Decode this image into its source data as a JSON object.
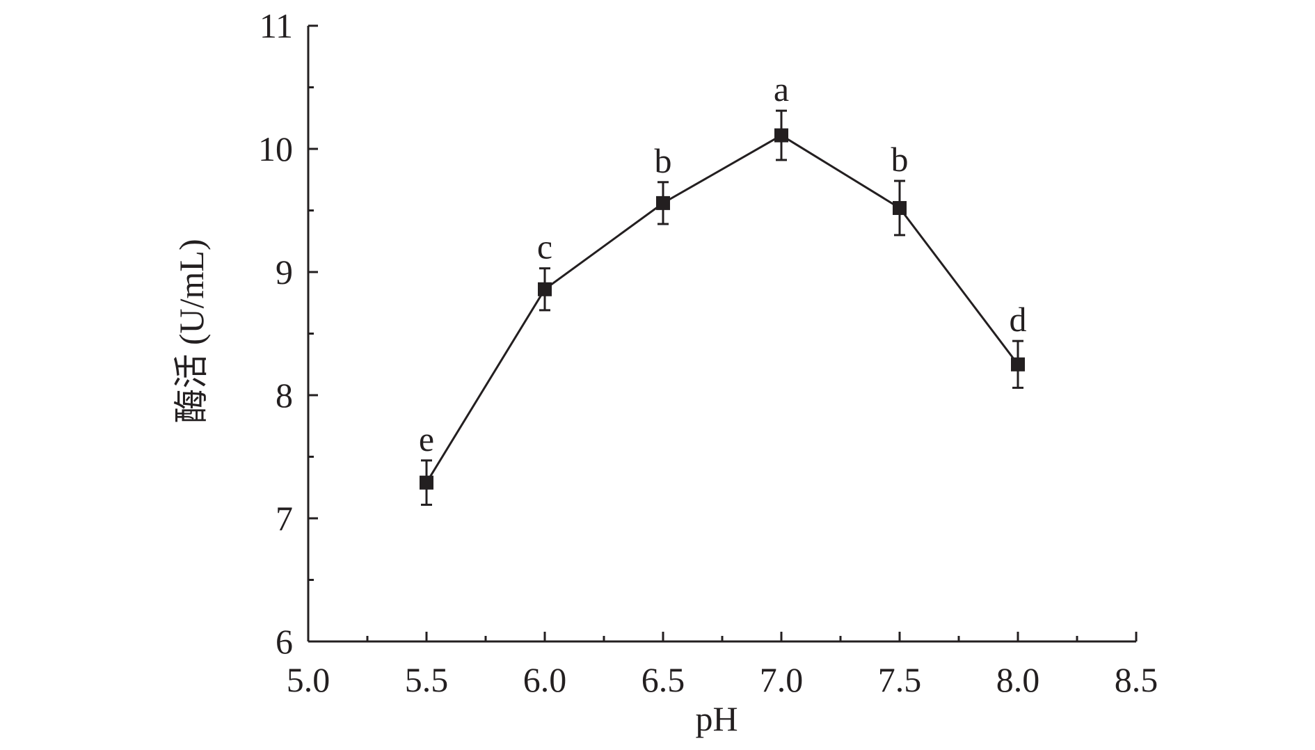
{
  "chart_data": {
    "type": "line",
    "title": "",
    "xlabel": "pH",
    "ylabel": "酶活 (U/mL)",
    "xlim": [
      5.0,
      8.5
    ],
    "ylim": [
      6,
      11
    ],
    "x_ticks": [
      "5.0",
      "5.5",
      "6.0",
      "6.5",
      "7.0",
      "7.5",
      "8.0",
      "8.5"
    ],
    "y_ticks": [
      "6",
      "7",
      "8",
      "9",
      "10",
      "11"
    ],
    "grid": false,
    "legend": "none",
    "series": [
      {
        "marker": "square",
        "color": "#231f20",
        "x": [
          5.5,
          6.0,
          6.5,
          7.0,
          7.5,
          8.0
        ],
        "y": [
          7.29,
          8.86,
          9.56,
          10.11,
          9.52,
          8.25
        ],
        "error": [
          0.18,
          0.17,
          0.17,
          0.2,
          0.22,
          0.19
        ],
        "labels": [
          "e",
          "c",
          "b",
          "a",
          "b",
          "d"
        ]
      }
    ]
  }
}
